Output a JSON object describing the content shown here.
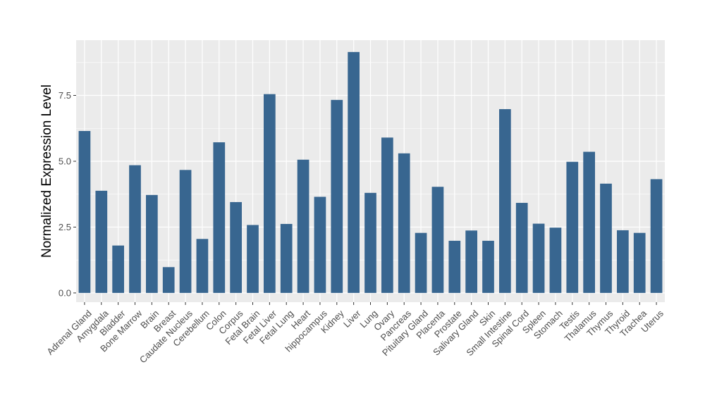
{
  "chart_data": {
    "type": "bar",
    "ylabel": "Normalized Expression Level",
    "xlabel": "",
    "ylim": [
      -0.35,
      9.6
    ],
    "yticks": [
      0.0,
      2.5,
      5.0,
      7.5
    ],
    "ytick_labels": [
      "0.0",
      "2.5",
      "5.0",
      "7.5"
    ],
    "grid": true,
    "categories": [
      "Adrenal Gland",
      "Amygdala",
      "Bladder",
      "Bone Marrow",
      "Brain",
      "Breast",
      "Caudate Nucleus",
      "Cerebellum",
      "Colon",
      "Corpus",
      "Fetal Brain",
      "Fetal Liver",
      "Fetal Lung",
      "Heart",
      "hippocampus",
      "Kidney",
      "Liver",
      "Lung",
      "Ovary",
      "Pancreas",
      "Pituitary Gland",
      "Placenta",
      "Prostate",
      "Salivary Gland",
      "Skin",
      "Small Intestine",
      "Spinal Cord",
      "Spleen",
      "Stomach",
      "Testis",
      "Thalamus",
      "Thymus",
      "Thyroid",
      "Trachea",
      "Uterus"
    ],
    "values": [
      6.15,
      3.88,
      1.8,
      4.85,
      3.72,
      0.98,
      4.67,
      2.05,
      5.72,
      3.45,
      2.58,
      7.55,
      2.62,
      5.06,
      3.65,
      7.33,
      9.15,
      3.8,
      5.9,
      5.3,
      2.28,
      4.03,
      1.98,
      2.37,
      1.98,
      6.98,
      3.42,
      2.63,
      2.48,
      4.98,
      5.36,
      4.15,
      2.38,
      2.28,
      4.32
    ],
    "colors": {
      "bar": "#386690",
      "panel": "#ebebeb",
      "grid_major": "#ffffff",
      "tick_text": "#4d4d4d",
      "axis_title": "#000000"
    }
  }
}
